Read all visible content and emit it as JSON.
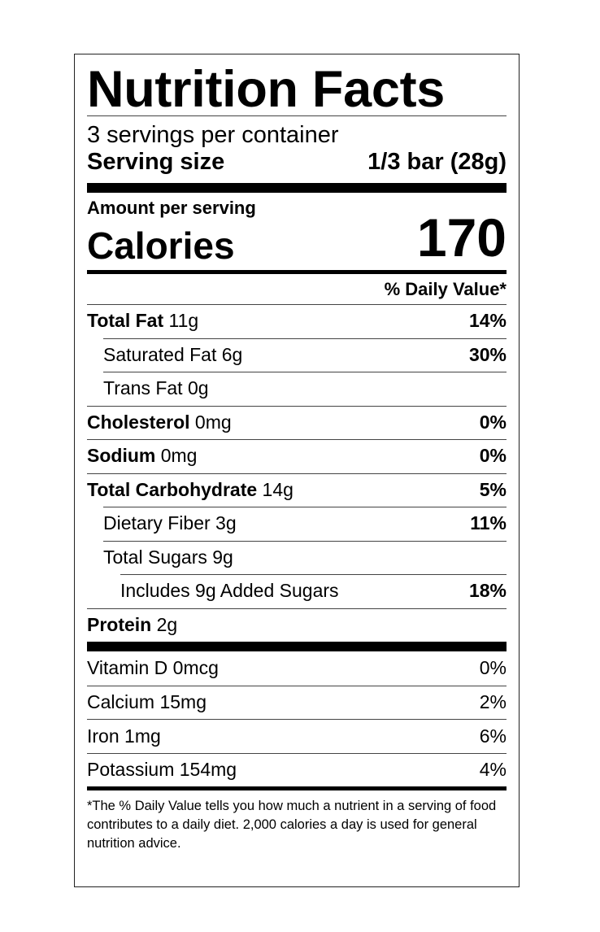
{
  "title": "Nutrition Facts",
  "servings_per_container": "3 servings per container",
  "serving_size_label": "Serving size",
  "serving_size_value": "1/3 bar (28g)",
  "amount_per_serving": "Amount per serving",
  "calories_label": "Calories",
  "calories_value": "170",
  "daily_value_header": "% Daily Value*",
  "nutrients": [
    {
      "name": "Total Fat",
      "amount": "11g",
      "dv": "14%",
      "bold": true,
      "indent": 0
    },
    {
      "name": "Saturated Fat",
      "amount": "6g",
      "dv": "30%",
      "bold": false,
      "indent": 1
    },
    {
      "name": "Trans Fat",
      "amount": "0g",
      "dv": "",
      "bold": false,
      "indent": 1
    },
    {
      "name": "Cholesterol",
      "amount": "0mg",
      "dv": "0%",
      "bold": true,
      "indent": 0
    },
    {
      "name": "Sodium",
      "amount": "0mg",
      "dv": "0%",
      "bold": true,
      "indent": 0
    },
    {
      "name": "Total Carbohydrate",
      "amount": "14g",
      "dv": "5%",
      "bold": true,
      "indent": 0
    },
    {
      "name": "Dietary Fiber",
      "amount": "3g",
      "dv": "11%",
      "bold": false,
      "indent": 1
    },
    {
      "name": "Total Sugars",
      "amount": "9g",
      "dv": "",
      "bold": false,
      "indent": 1
    },
    {
      "name": "Includes 9g Added Sugars",
      "amount": "",
      "dv": "18%",
      "bold": false,
      "indent": 2
    },
    {
      "name": "Protein",
      "amount": "2g",
      "dv": "",
      "bold": true,
      "indent": 0
    }
  ],
  "vitamins": [
    {
      "name": "Vitamin D",
      "amount": "0mcg",
      "dv": "0%"
    },
    {
      "name": "Calcium",
      "amount": "15mg",
      "dv": "2%"
    },
    {
      "name": "Iron",
      "amount": "1mg",
      "dv": "6%"
    },
    {
      "name": "Potassium",
      "amount": "154mg",
      "dv": "4%"
    }
  ],
  "footnote": "*The % Daily Value tells you how much a nutrient in a serving of food contributes to a daily diet. 2,000 calories a day is used for general nutrition advice."
}
